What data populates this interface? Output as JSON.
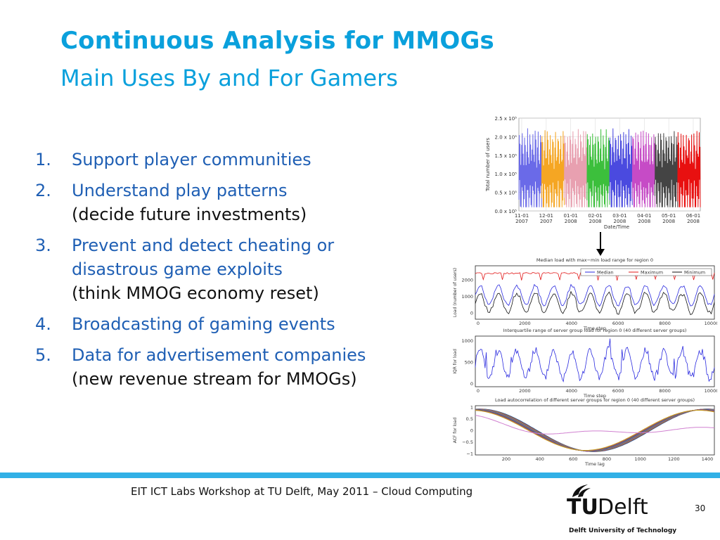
{
  "slide": {
    "title": "Continuous Analysis for MMOGs",
    "subtitle": "Main Uses By and For Gamers",
    "items": [
      {
        "num": "1.",
        "text": "Support player communities",
        "sub": ""
      },
      {
        "num": "2.",
        "text": "Understand play patterns",
        "sub": "(decide future investments)"
      },
      {
        "num": "3.",
        "text": "Prevent and detect cheating or disastrous game exploits",
        "sub": "(think MMOG economy reset)"
      },
      {
        "num": "4.",
        "text": "Broadcasting of gaming events",
        "sub": ""
      },
      {
        "num": "5.",
        "text": "Data for advertisement companies",
        "sub": "(new revenue stream for MMOGs)"
      }
    ],
    "footer": "EIT ICT Labs Workshop at TU Delft, May 2011 – Cloud Computing",
    "page_number": "30",
    "logo": {
      "tu": "TU",
      "delft": "Delft",
      "sub": "Delft University of Technology"
    }
  },
  "chart_data": [
    {
      "type": "line",
      "ylabel": "Total number of users",
      "xlabel": "Date/Time",
      "yticks": [
        "0.0 x 10⁵",
        "0.5 x 10⁵",
        "1.0 x 10⁵",
        "1.5 x 10⁵",
        "2.0 x 10⁵",
        "2.5 x 10⁵"
      ],
      "xticks": [
        [
          "11-01",
          "2007"
        ],
        [
          "12-01",
          "2007"
        ],
        [
          "01-01",
          "2008"
        ],
        [
          "02-01",
          "2008"
        ],
        [
          "03-01",
          "2008"
        ],
        [
          "04-01",
          "2008"
        ],
        [
          "05-01",
          "2008"
        ],
        [
          "06-01",
          "2008"
        ]
      ],
      "segment_colors": [
        "#6a6ae8",
        "#f5a623",
        "#e8a0b0",
        "#3cbf3c",
        "#4a4adf",
        "#c64bc6",
        "#444444",
        "#e81010"
      ]
    },
    {
      "type": "line",
      "title": "Median load with max−min load range for region 0",
      "ylabel": "Load (number of users)",
      "xlabel": "Time step",
      "yticks": [
        "0",
        "1000",
        "2000"
      ],
      "xticks": [
        "0",
        "2000",
        "4000",
        "6000",
        "8000",
        "10000"
      ],
      "legend": [
        "Median",
        "Maximum",
        "Minimum"
      ],
      "colors": [
        "#2a2adf",
        "#e21a1a",
        "#111111"
      ]
    },
    {
      "type": "line",
      "title": "Interquartile range of server group load for region 0 (40 different server groups)",
      "ylabel": "IQR for load",
      "xlabel": "Time step",
      "yticks": [
        "0",
        "500",
        "1000"
      ],
      "xticks": [
        "0",
        "2000",
        "4000",
        "6000",
        "8000",
        "10000"
      ],
      "colors": [
        "#2a2adf"
      ]
    },
    {
      "type": "line",
      "title": "Load autocorrelation of different server groups for region 0 (40 different server groups)",
      "ylabel": "ACF for load",
      "xlabel": "Time lag",
      "yticks": [
        "−1",
        "−0.5",
        "0",
        "0.5",
        "1"
      ],
      "xticks": [
        "200",
        "400",
        "600",
        "800",
        "1000",
        "1200",
        "1400"
      ]
    }
  ]
}
